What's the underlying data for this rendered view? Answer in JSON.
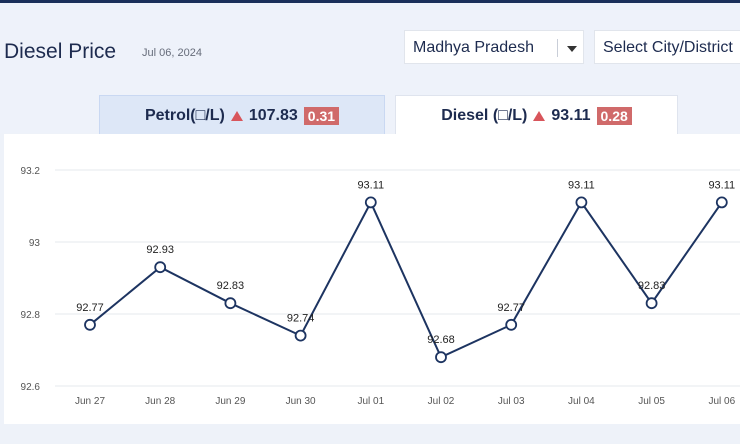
{
  "page": {
    "title": "Diesel Price",
    "date": "Jul 06, 2024"
  },
  "filters": {
    "state": "Madhya Pradesh",
    "city_placeholder": "Select City/District"
  },
  "tabs": {
    "petrol": {
      "label": "Petrol(□/L)",
      "price": "107.83",
      "change": "0.31"
    },
    "diesel": {
      "label": "Diesel (□/L)",
      "price": "93.11",
      "change": "0.28"
    }
  },
  "colors": {
    "line": "#1d3461",
    "up_arrow": "#d8555b",
    "badge": "#d06a6a",
    "active_tab_bg": "#ffffff",
    "inactive_tab_bg": "#dde7f7"
  },
  "chart_data": {
    "type": "line",
    "categories": [
      "Jun 27",
      "Jun 28",
      "Jun 29",
      "Jun 30",
      "Jul 01",
      "Jul 02",
      "Jul 03",
      "Jul 04",
      "Jul 05",
      "Jul 06"
    ],
    "series": [
      {
        "values": [
          92.77,
          92.93,
          92.83,
          92.74,
          93.11,
          92.68,
          92.77,
          93.11,
          92.83,
          93.11
        ]
      }
    ],
    "data_labels": [
      "92.77",
      "92.93",
      "92.83",
      "92.74",
      "93.11",
      "92.68",
      "92.77",
      "93.11",
      "92.83",
      "93.11"
    ],
    "y_ticks": [
      "92.6",
      "92.8",
      "93",
      "93.2"
    ],
    "y_tick_values": [
      92.6,
      92.8,
      93.0,
      93.2
    ],
    "ylim": [
      92.6,
      93.2
    ],
    "grid": true,
    "legend": false
  }
}
